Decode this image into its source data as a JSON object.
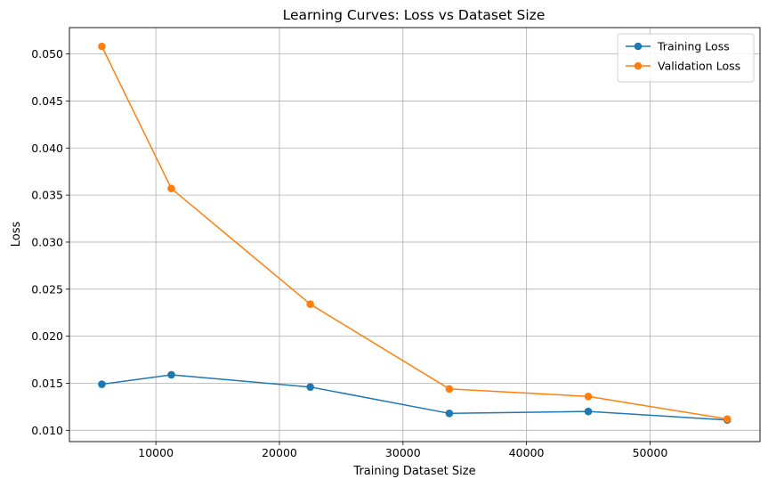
{
  "chart_data": {
    "type": "line",
    "title": "Learning Curves: Loss vs Dataset Size",
    "xlabel": "Training Dataset Size",
    "ylabel": "Loss",
    "x": [
      5625,
      11250,
      22500,
      33750,
      45000,
      56250
    ],
    "series": [
      {
        "name": "Training Loss",
        "color": "#1f77b4",
        "marker": "circle",
        "values": [
          0.0149,
          0.0159,
          0.0146,
          0.0118,
          0.012,
          0.0111
        ]
      },
      {
        "name": "Validation Loss",
        "color": "#ff7f0e",
        "marker": "circle",
        "values": [
          0.0508,
          0.0357,
          0.0234,
          0.0144,
          0.0136,
          0.0112
        ]
      }
    ],
    "xlim": [
      3000,
      58900
    ],
    "ylim": [
      0.0088,
      0.0528
    ],
    "xticks": [
      10000,
      20000,
      30000,
      40000,
      50000
    ],
    "xtick_labels": [
      "10000",
      "20000",
      "30000",
      "40000",
      "50000"
    ],
    "yticks": [
      0.01,
      0.015,
      0.02,
      0.025,
      0.03,
      0.035,
      0.04,
      0.045,
      0.05
    ],
    "ytick_labels": [
      "0.010",
      "0.015",
      "0.020",
      "0.025",
      "0.030",
      "0.035",
      "0.040",
      "0.045",
      "0.050"
    ],
    "grid": true,
    "legend_position": "top-right"
  }
}
